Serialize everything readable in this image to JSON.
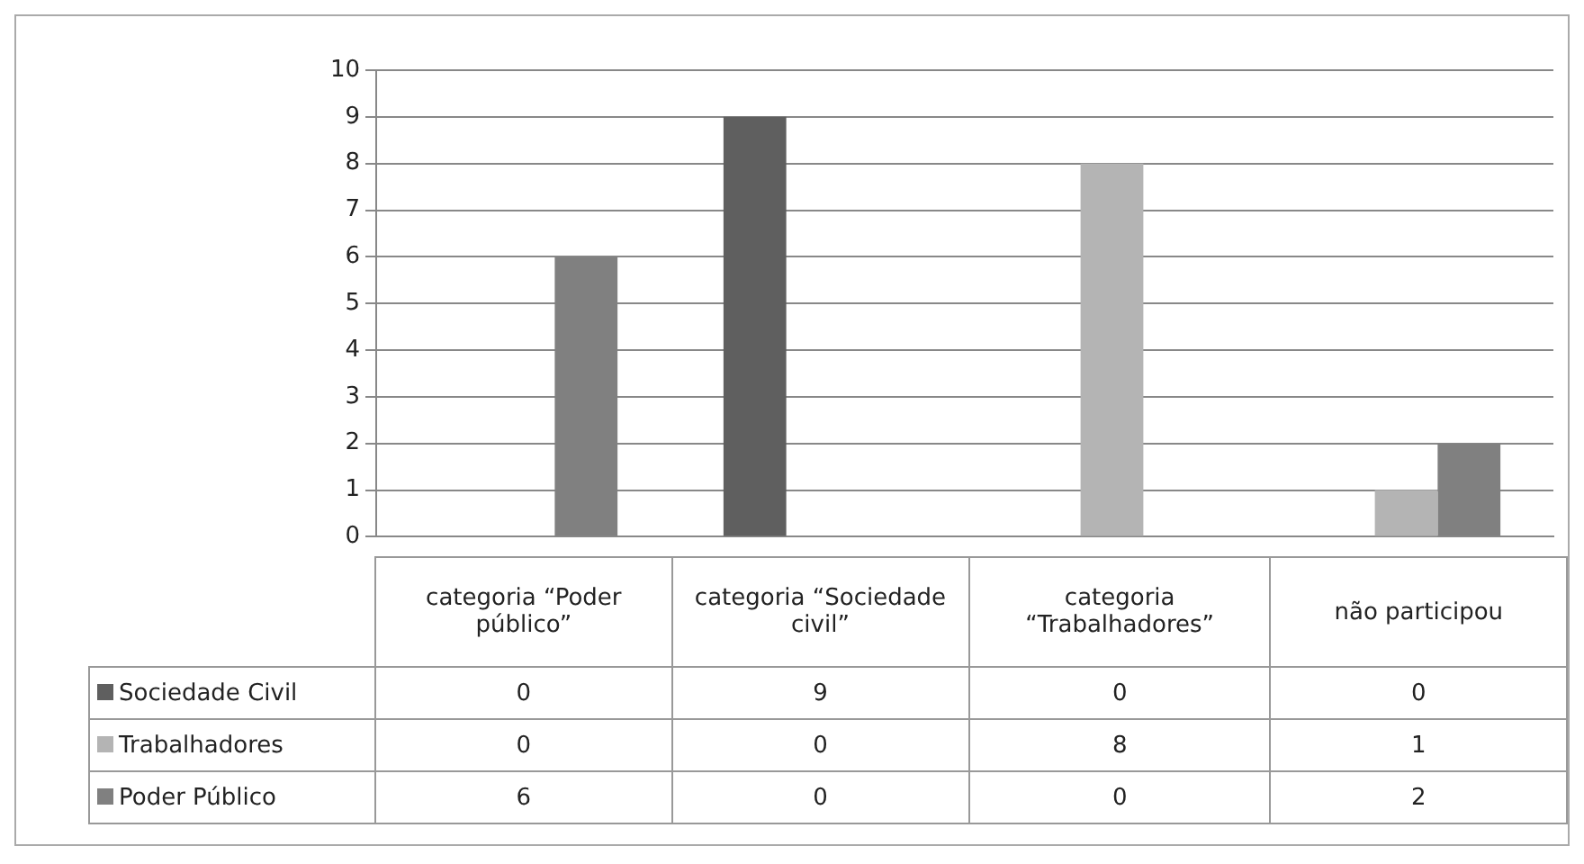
{
  "chart_data": {
    "type": "bar",
    "categories": [
      "categoria “Poder público”",
      "categoria “Sociedade civil”",
      "categoria “Trabalhadores”",
      "não participou"
    ],
    "series": [
      {
        "name": "Sociedade Civil",
        "color": "#5f5f5f",
        "values": [
          0,
          9,
          0,
          0
        ]
      },
      {
        "name": "Trabalhadores",
        "color": "#b4b4b4",
        "values": [
          0,
          0,
          8,
          1
        ]
      },
      {
        "name": "Poder Público",
        "color": "#808080",
        "values": [
          6,
          0,
          0,
          2
        ]
      }
    ],
    "ylim": [
      0,
      10
    ],
    "yticks": [
      0,
      1,
      2,
      3,
      4,
      5,
      6,
      7,
      8,
      9,
      10
    ],
    "grid": "y",
    "legend": "bottom",
    "data_labels": true
  }
}
